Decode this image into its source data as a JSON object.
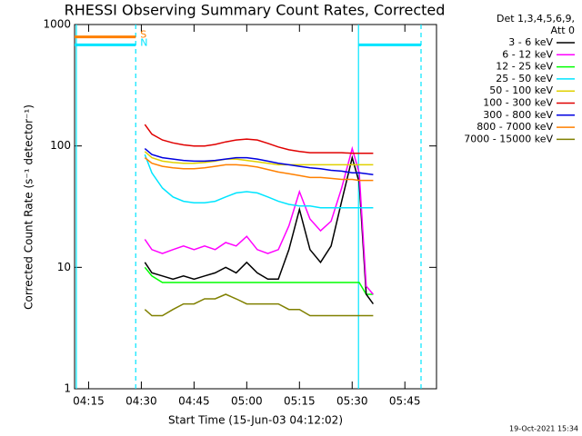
{
  "chart_data": {
    "type": "line",
    "title": "RHESSI Observing Summary Count Rates, Corrected",
    "x_label": "Start Time (15-Jun-03 04:12:02)",
    "y_label": "Corrected Count Rate (s⁻¹ detector⁻¹)",
    "legend_header": [
      "Det 1,3,4,5,6,9,",
      "Att 0"
    ],
    "footer": "19-Oct-2021 15:34",
    "y_scale": "log",
    "xlim": [
      251,
      354
    ],
    "ylim": [
      1,
      1000
    ],
    "xticks": [
      {
        "value": 255,
        "label": "04:15"
      },
      {
        "value": 270,
        "label": "04:30"
      },
      {
        "value": 285,
        "label": "04:45"
      },
      {
        "value": 300,
        "label": "05:00"
      },
      {
        "value": 315,
        "label": "05:15"
      },
      {
        "value": 330,
        "label": "05:30"
      },
      {
        "value": 345,
        "label": "05:45"
      }
    ],
    "yticks": [
      1,
      10,
      100,
      1000
    ],
    "x": [
      271,
      273,
      276,
      279,
      282,
      285,
      288,
      291,
      294,
      297,
      300,
      303,
      306,
      309,
      312,
      315,
      318,
      321,
      324,
      327,
      330,
      332,
      334,
      336
    ],
    "series": [
      {
        "name": "3 - 6 keV",
        "color": "#000000",
        "values": [
          11,
          9,
          8.5,
          8,
          8.5,
          8,
          8.5,
          9,
          10,
          9,
          11,
          9,
          8,
          8,
          14,
          30,
          14,
          11,
          15,
          35,
          80,
          50,
          6,
          5
        ]
      },
      {
        "name": "6 - 12 keV",
        "color": "#ff00ff",
        "values": [
          17,
          14,
          13,
          14,
          15,
          14,
          15,
          14,
          16,
          15,
          18,
          14,
          13,
          14,
          22,
          42,
          25,
          20,
          24,
          45,
          95,
          60,
          7,
          6
        ]
      },
      {
        "name": "12 - 25 keV",
        "color": "#00ff00",
        "values": [
          10,
          8.5,
          7.5,
          7.5,
          7.5,
          7.5,
          7.5,
          7.5,
          7.5,
          7.5,
          7.5,
          7.5,
          7.5,
          7.5,
          7.5,
          7.5,
          7.5,
          7.5,
          7.5,
          7.5,
          7.5,
          7.5,
          6,
          6
        ]
      },
      {
        "name": "25 - 50 keV",
        "color": "#00e5ff",
        "values": [
          85,
          60,
          45,
          38,
          35,
          34,
          34,
          35,
          38,
          41,
          42,
          41,
          38,
          35,
          33,
          32,
          32,
          31,
          31,
          31,
          31,
          31,
          31,
          31
        ]
      },
      {
        "name": "50 - 100 keV",
        "color": "#e0d000",
        "values": [
          90,
          80,
          75,
          73,
          72,
          72,
          73,
          75,
          78,
          78,
          76,
          74,
          72,
          70,
          70,
          70,
          70,
          70,
          70,
          70,
          70,
          70,
          70,
          70
        ]
      },
      {
        "name": "100 - 300 keV",
        "color": "#e00000",
        "values": [
          150,
          125,
          112,
          106,
          102,
          100,
          100,
          103,
          108,
          112,
          114,
          112,
          105,
          98,
          93,
          90,
          88,
          88,
          88,
          88,
          87,
          87,
          87,
          87
        ]
      },
      {
        "name": "300 - 800 keV",
        "color": "#0000e0",
        "values": [
          95,
          85,
          80,
          78,
          76,
          75,
          75,
          76,
          78,
          80,
          80,
          78,
          75,
          72,
          70,
          68,
          66,
          65,
          63,
          62,
          60,
          60,
          59,
          58
        ]
      },
      {
        "name": "800 - 7000 keV",
        "color": "#ff8000",
        "values": [
          80,
          72,
          68,
          66,
          65,
          65,
          66,
          68,
          70,
          70,
          69,
          67,
          64,
          61,
          59,
          57,
          55,
          55,
          54,
          53,
          53,
          52,
          52,
          52
        ]
      },
      {
        "name": "7000 - 15000 keV",
        "color": "#808000",
        "values": [
          4.5,
          4,
          4,
          4.5,
          5,
          5,
          5.5,
          5.5,
          6,
          5.5,
          5,
          5,
          5,
          5,
          4.5,
          4.5,
          4,
          4,
          4,
          4,
          4,
          4,
          4,
          4
        ]
      }
    ],
    "state_lines": [
      {
        "label": "S",
        "color": "#ff8000",
        "value": 790,
        "x": [
          251,
          268.4
        ]
      },
      {
        "label": "N",
        "color": "#00e5ff",
        "value": 680,
        "x": [
          251,
          268.4
        ]
      },
      {
        "color": "#00e5ff",
        "value": 680,
        "x": [
          331.8,
          349.6
        ]
      }
    ],
    "vlines": {
      "color": "#00e5ff",
      "lines": [
        {
          "x": 251.5,
          "style": "solid"
        },
        {
          "x": 268.4,
          "style": "dashed"
        },
        {
          "x": 331.8,
          "style": "solid"
        },
        {
          "x": 349.6,
          "style": "dashed"
        }
      ]
    }
  }
}
